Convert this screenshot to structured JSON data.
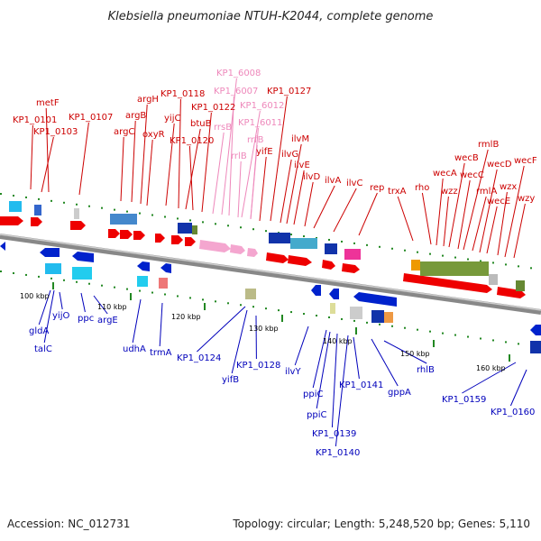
{
  "title": "Klebsiella pneumoniae NTUH-K2044, complete genome",
  "footer": {
    "accession": "Accession: NC_012731",
    "topology": "Topology: circular; Length: 5,248,520 bp; Genes: 5,110"
  },
  "labels_top": [
    "KP1_0101",
    "KP1_0103",
    "metF",
    "KP1_0107",
    "argC",
    "argB",
    "argH",
    "oxyR",
    "yijC",
    "KP1_0118",
    "btuB",
    "KP1_0120",
    "KP1_0122",
    "rrsB",
    "KP1_6008",
    "KP1_6007",
    "KP1_6012",
    "KP1_6011",
    "rrlB",
    "rrfB",
    "yifE",
    "KP1_0127",
    "ilvG",
    "ilvM",
    "ilvE",
    "ilvD",
    "ilvA",
    "ilvC",
    "rep",
    "trxA",
    "rho",
    "wecA",
    "wzz",
    "wecB",
    "wecC",
    "rmlB",
    "rmlA",
    "wecD",
    "wecE",
    "wzx",
    "wecF",
    "wzy"
  ],
  "labels_bottom": [
    "gldA",
    "talC",
    "yijO",
    "ppc",
    "argE",
    "udhA",
    "trmA",
    "KP1_0124",
    "yifB",
    "KP1_0128",
    "ilvY",
    "ppiC",
    "ppiC",
    "KP1_0139",
    "KP1_0140",
    "KP1_0141",
    "gppA",
    "rhlB",
    "KP1_0159",
    "KP1_0160"
  ],
  "scale_labels": [
    "100 kbp",
    "110 kbp",
    "120 kbp",
    "130 kbp",
    "140 kbp",
    "150 kbp",
    "160 kbp"
  ],
  "colors": {
    "forward_gene": "#ee0000",
    "reverse_gene": "#0022cc",
    "rrna": "#f4a6cf",
    "backbone": "#888888"
  }
}
